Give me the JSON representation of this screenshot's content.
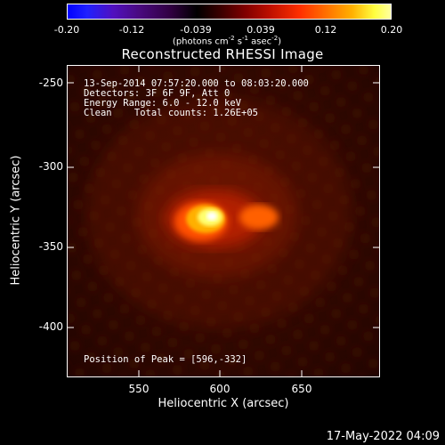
{
  "colorbar": {
    "ticks": [
      "-0.20",
      "-0.12",
      "-0.039",
      "0.039",
      "0.12",
      "0.20"
    ],
    "units_prefix": "(photons cm",
    "units_exp1": "-2",
    "units_mid1": " s",
    "units_exp2": "-1",
    "units_mid2": " asec",
    "units_exp3": "-2",
    "units_suffix": ")"
  },
  "title": "Reconstructed RHESSI Image",
  "info": {
    "time_range": "13-Sep-2014 07:57:20.000 to 08:03:20.000",
    "detectors": "Detectors: 3F 6F 9F, Att 0",
    "energy_range": "Energy Range: 6.0 - 12.0 keV",
    "clean": "Clean    Total counts: 1.26E+05",
    "peak": "Position of Peak = [596,-332]"
  },
  "axes": {
    "x_label": "Heliocentric X (arcsec)",
    "y_label": "Heliocentric Y (arcsec)",
    "x_ticks": [
      "550",
      "600",
      "650"
    ],
    "y_ticks": [
      "-250",
      "-300",
      "-350",
      "-400"
    ]
  },
  "image": {
    "source_center": [
      596,
      -332
    ],
    "secondary_source": [
      623,
      -333
    ],
    "colors": {
      "background": "#300800",
      "halo": "#a01000",
      "core": "#ffff80",
      "peak": "#ffffff"
    }
  },
  "footer": {
    "date": "17-May-2022 04:09"
  }
}
